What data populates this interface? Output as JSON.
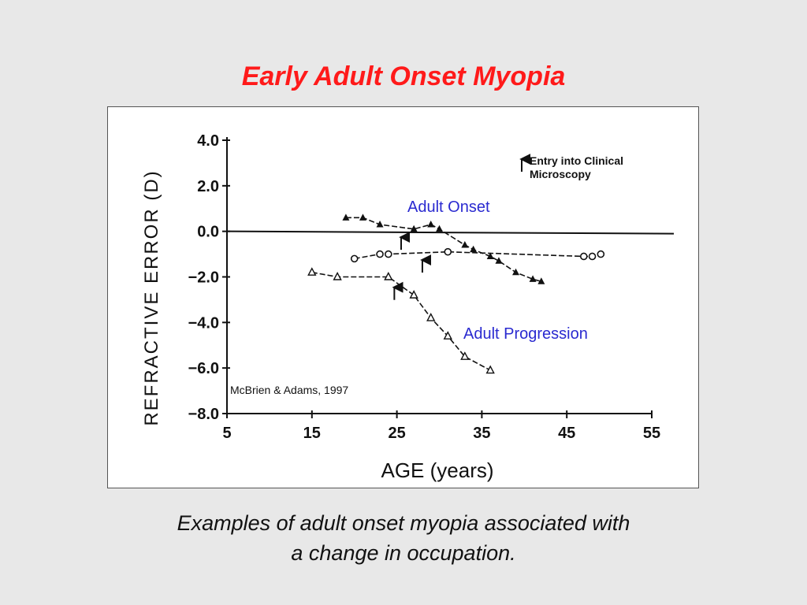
{
  "slide": {
    "title": "Early Adult Onset Myopia",
    "caption_lines": [
      "Examples of adult onset myopia associated with",
      "a change in occupation."
    ],
    "title_color": "#ff1a1a",
    "label_color": "#2a2ad0"
  },
  "chart_data": {
    "type": "line",
    "xlabel": "AGE (years)",
    "ylabel": "REFRACTIVE ERROR (D)",
    "xlim": [
      5,
      55
    ],
    "ylim": [
      -8,
      4
    ],
    "x_ticks": [
      5,
      15,
      25,
      35,
      45,
      55
    ],
    "y_ticks": [
      4.0,
      2.0,
      0.0,
      -2.0,
      -4.0,
      -6.0,
      -8.0
    ],
    "x_tick_labels": [
      "5",
      "15",
      "25",
      "35",
      "45",
      "55"
    ],
    "y_tick_labels": [
      "4.0",
      "2.0",
      "0.0",
      "−2.0",
      "−4.0",
      "−6.0",
      "−8.0"
    ],
    "reference_line_y": 0,
    "grid": false,
    "legend": {
      "position": "top-right",
      "text_lines": [
        "Entry into Clinical",
        "Microscopy"
      ],
      "symbol": "arrow-up"
    },
    "annotations": [
      {
        "text": "Adult Onset",
        "color": "#2a2ad0"
      },
      {
        "text": "Adult Progression",
        "color": "#2a2ad0"
      },
      {
        "text": "McBrien & Adams, 1997",
        "color": "#111111"
      }
    ],
    "series": [
      {
        "marker": "filled-triangle",
        "x": [
          19,
          21,
          23,
          27,
          29,
          30,
          33,
          34,
          36,
          37,
          39,
          41,
          42
        ],
        "y": [
          0.6,
          0.6,
          0.3,
          0.1,
          0.3,
          0.1,
          -0.6,
          -0.8,
          -1.1,
          -1.3,
          -1.8,
          -2.1,
          -2.2
        ],
        "entry_arrow": {
          "x": 25.5,
          "y": -0.5
        }
      },
      {
        "marker": "open-circle",
        "x": [
          20,
          23,
          24,
          31,
          47,
          48,
          49
        ],
        "y": [
          -1.2,
          -1.0,
          -1.0,
          -0.9,
          -1.1,
          -1.1,
          -1.0
        ],
        "entry_arrow": {
          "x": 28,
          "y": -1.5
        }
      },
      {
        "marker": "open-triangle",
        "x": [
          15,
          18,
          24,
          27,
          29,
          31,
          33,
          36
        ],
        "y": [
          -1.8,
          -2.0,
          -2.0,
          -2.8,
          -3.8,
          -4.6,
          -5.5,
          -6.1
        ],
        "entry_arrow": {
          "x": 24.7,
          "y": -2.7
        }
      }
    ]
  }
}
